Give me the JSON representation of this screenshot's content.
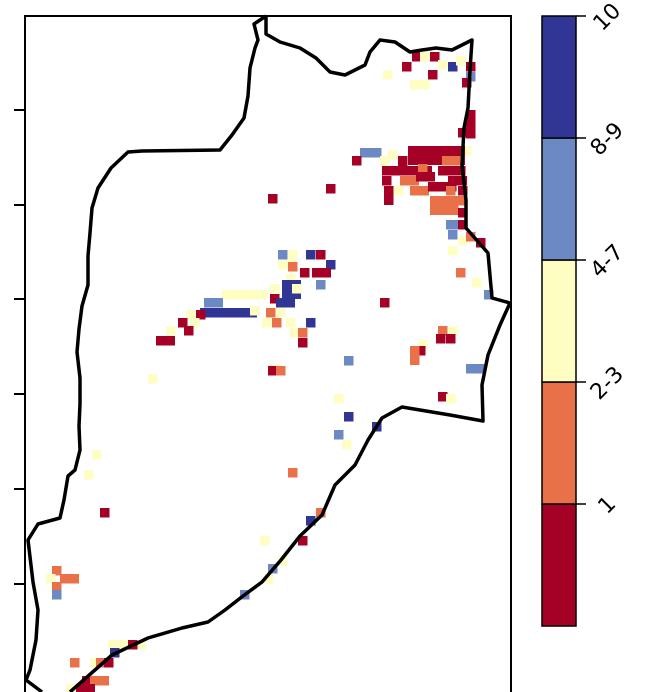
{
  "map": {
    "colors": {
      "cat_1": "#a50026",
      "cat_2_3": "#e8714a",
      "cat_4_7": "#fefec2",
      "cat_8_9": "#6d89c4",
      "cat_10": "#313695",
      "frame": "#000000",
      "boundary": "#000000"
    },
    "tick_count_left": 6
  },
  "legend": {
    "title": "",
    "categories": [
      {
        "label": "1",
        "color": "#a50026"
      },
      {
        "label": "2-3",
        "color": "#e8714a"
      },
      {
        "label": "4-7",
        "color": "#fefec2"
      },
      {
        "label": "8-9",
        "color": "#6d89c4"
      },
      {
        "label": "10",
        "color": "#313695"
      }
    ]
  }
}
